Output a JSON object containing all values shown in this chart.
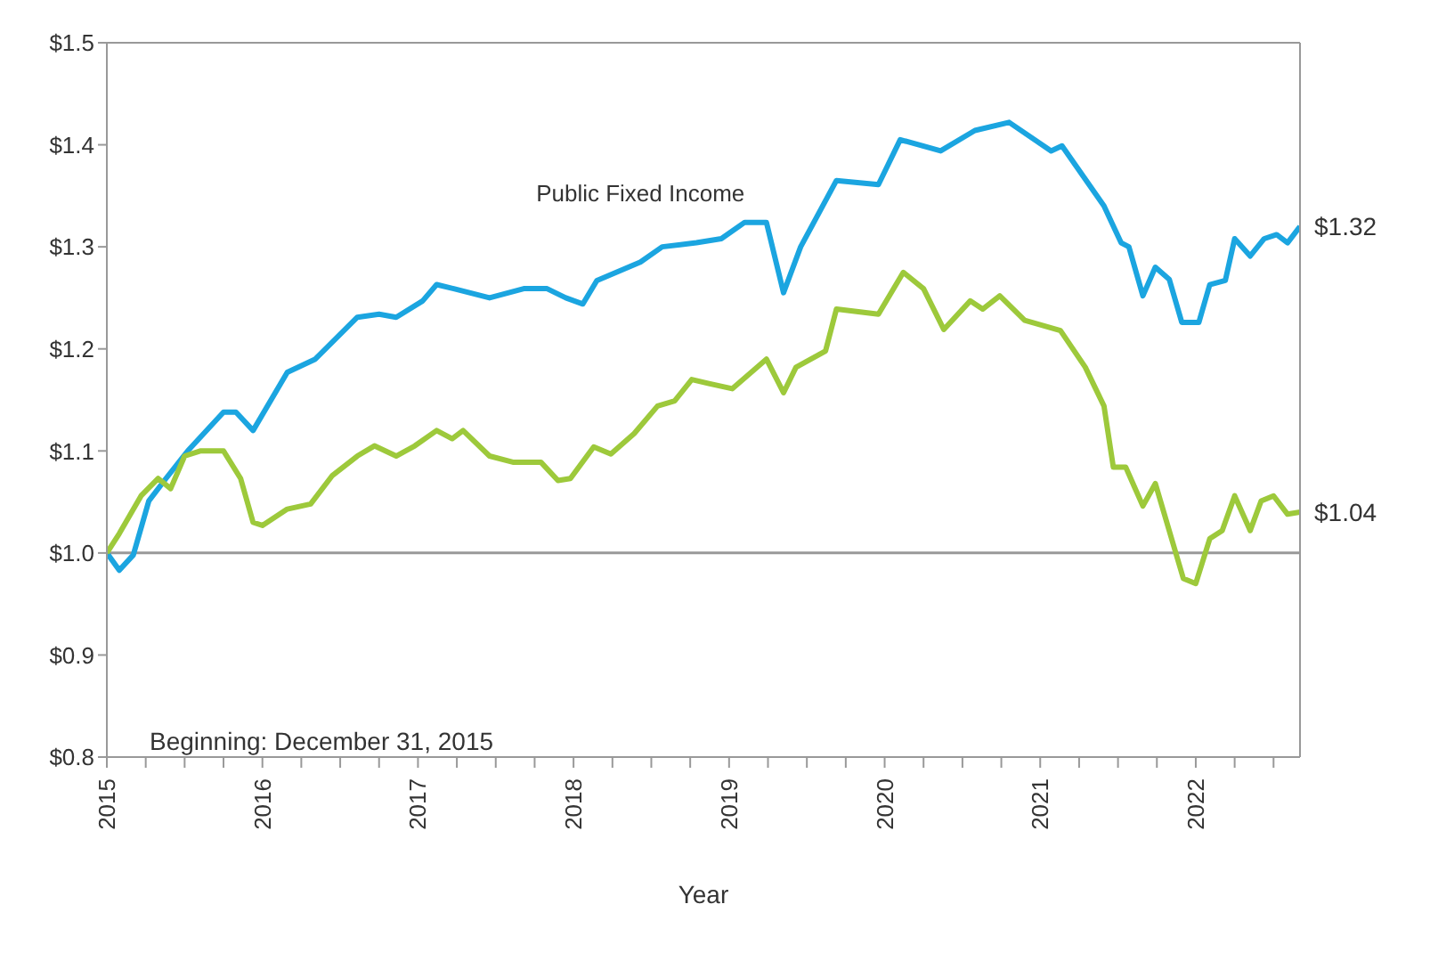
{
  "chart_data": {
    "type": "line",
    "xlabel": "Year",
    "xlim": [
      2015,
      2022.67
    ],
    "ylim": [
      0.8,
      1.5
    ],
    "xticks": [
      2015,
      {
        "value": 2015.25,
        "label": null
      },
      {
        "value": 2015.5,
        "label": null
      },
      {
        "value": 2015.75,
        "label": null
      },
      2016,
      {
        "value": 2016.25,
        "label": null
      },
      {
        "value": 2016.5,
        "label": null
      },
      {
        "value": 2016.75,
        "label": null
      },
      2017,
      {
        "value": 2017.25,
        "label": null
      },
      {
        "value": 2017.5,
        "label": null
      },
      {
        "value": 2017.75,
        "label": null
      },
      2018,
      {
        "value": 2018.25,
        "label": null
      },
      {
        "value": 2018.5,
        "label": null
      },
      {
        "value": 2018.75,
        "label": null
      },
      2019,
      {
        "value": 2019.25,
        "label": null
      },
      {
        "value": 2019.5,
        "label": null
      },
      {
        "value": 2019.75,
        "label": null
      },
      2020,
      {
        "value": 2020.25,
        "label": null
      },
      {
        "value": 2020.5,
        "label": null
      },
      {
        "value": 2020.75,
        "label": null
      },
      2021,
      {
        "value": 2021.25,
        "label": null
      },
      {
        "value": 2021.5,
        "label": null
      },
      {
        "value": 2021.75,
        "label": null
      },
      2022,
      {
        "value": 2022.25,
        "label": null
      },
      {
        "value": 2022.5,
        "label": null
      }
    ],
    "yticks": [
      {
        "value": 0.8,
        "label": "$0.8"
      },
      {
        "value": 0.9,
        "label": "$0.9"
      },
      {
        "value": 1.0,
        "label": "$1.0"
      },
      {
        "value": 1.1,
        "label": "$1.1"
      },
      {
        "value": 1.2,
        "label": "$1.2"
      },
      {
        "value": 1.3,
        "label": "$1.3"
      },
      {
        "value": 1.4,
        "label": "$1.4"
      },
      {
        "value": 1.5,
        "label": "$1.5"
      }
    ],
    "marker": "none",
    "line_style": "solid",
    "ref_lines": [
      {
        "axis": "y",
        "value": 1.0,
        "color": "#999999"
      }
    ],
    "annotations": [
      "Beginning: December 31, 2015"
    ],
    "series": [
      {
        "name": "Public Fixed Income",
        "color": "#1ba5e0",
        "x": [
          2015.0,
          2015.08,
          2015.17,
          2015.27,
          2015.38,
          2015.52,
          2015.75,
          2015.83,
          2015.94,
          2016.16,
          2016.34,
          2016.61,
          2016.75,
          2016.86,
          2017.03,
          2017.12,
          2017.23,
          2017.46,
          2017.68,
          2017.83,
          2017.95,
          2018.06,
          2018.15,
          2018.43,
          2018.57,
          2018.79,
          2018.95,
          2019.1,
          2019.24,
          2019.35,
          2019.46,
          2019.69,
          2019.96,
          2020.1,
          2020.36,
          2020.58,
          2020.8,
          2021.07,
          2021.14,
          2021.41,
          2021.52,
          2021.57,
          2021.66,
          2021.74,
          2021.83,
          2021.91,
          2022.02,
          2022.09,
          2022.19,
          2022.25,
          2022.35,
          2022.44,
          2022.52,
          2022.59,
          2022.67
        ],
        "values": [
          1.0,
          0.983,
          0.998,
          1.051,
          1.073,
          1.1,
          1.138,
          1.138,
          1.12,
          1.177,
          1.19,
          1.231,
          1.234,
          1.231,
          1.247,
          1.263,
          1.259,
          1.25,
          1.259,
          1.259,
          1.25,
          1.244,
          1.267,
          1.285,
          1.3,
          1.304,
          1.308,
          1.324,
          1.324,
          1.255,
          1.3,
          1.365,
          1.361,
          1.405,
          1.394,
          1.414,
          1.422,
          1.394,
          1.399,
          1.34,
          1.304,
          1.3,
          1.252,
          1.28,
          1.268,
          1.226,
          1.226,
          1.263,
          1.267,
          1.308,
          1.291,
          1.308,
          1.312,
          1.304,
          1.32
        ],
        "value_labels": [
          null,
          null,
          null,
          null,
          null,
          null,
          null,
          null,
          null,
          null,
          null,
          null,
          null,
          null,
          null,
          null,
          null,
          null,
          null,
          null,
          null,
          null,
          null,
          null,
          null,
          null,
          null,
          null,
          null,
          null,
          null,
          null,
          null,
          null,
          null,
          null,
          null,
          null,
          null,
          null,
          null,
          null,
          null,
          null,
          null,
          null,
          null,
          null,
          null,
          null,
          null,
          null,
          null,
          null,
          "$1.32"
        ]
      },
      {
        "color": "#9dc93b",
        "x": [
          2015.0,
          2015.08,
          2015.22,
          2015.33,
          2015.41,
          2015.5,
          2015.6,
          2015.75,
          2015.86,
          2015.94,
          2016.0,
          2016.16,
          2016.31,
          2016.45,
          2016.61,
          2016.72,
          2016.86,
          2016.98,
          2017.12,
          2017.22,
          2017.29,
          2017.46,
          2017.61,
          2017.79,
          2017.9,
          2017.98,
          2018.13,
          2018.24,
          2018.39,
          2018.54,
          2018.65,
          2018.76,
          2018.87,
          2019.02,
          2019.24,
          2019.35,
          2019.43,
          2019.62,
          2019.69,
          2019.96,
          2020.12,
          2020.25,
          2020.38,
          2020.55,
          2020.63,
          2020.74,
          2020.9,
          2021.13,
          2021.29,
          2021.41,
          2021.47,
          2021.55,
          2021.66,
          2021.74,
          2021.92,
          2022.0,
          2022.09,
          2022.17,
          2022.25,
          2022.35,
          2022.42,
          2022.5,
          2022.59,
          2022.67
        ],
        "values": [
          1.0,
          1.019,
          1.056,
          1.073,
          1.063,
          1.095,
          1.1,
          1.1,
          1.073,
          1.03,
          1.027,
          1.043,
          1.048,
          1.076,
          1.095,
          1.105,
          1.095,
          1.105,
          1.12,
          1.112,
          1.12,
          1.095,
          1.089,
          1.089,
          1.071,
          1.073,
          1.104,
          1.097,
          1.117,
          1.144,
          1.149,
          1.17,
          1.166,
          1.161,
          1.19,
          1.157,
          1.182,
          1.198,
          1.239,
          1.234,
          1.275,
          1.259,
          1.219,
          1.247,
          1.239,
          1.252,
          1.228,
          1.218,
          1.182,
          1.144,
          1.084,
          1.084,
          1.046,
          1.068,
          0.975,
          0.97,
          1.014,
          1.022,
          1.056,
          1.022,
          1.051,
          1.056,
          1.038,
          1.04
        ],
        "value_labels": [
          null,
          null,
          null,
          null,
          null,
          null,
          null,
          null,
          null,
          null,
          null,
          null,
          null,
          null,
          null,
          null,
          null,
          null,
          null,
          null,
          null,
          null,
          null,
          null,
          null,
          null,
          null,
          null,
          null,
          null,
          null,
          null,
          null,
          null,
          null,
          null,
          null,
          null,
          null,
          null,
          null,
          null,
          null,
          null,
          null,
          null,
          null,
          null,
          null,
          null,
          null,
          null,
          null,
          null,
          null,
          null,
          null,
          null,
          null,
          null,
          null,
          null,
          null,
          "$1.04"
        ]
      }
    ]
  }
}
